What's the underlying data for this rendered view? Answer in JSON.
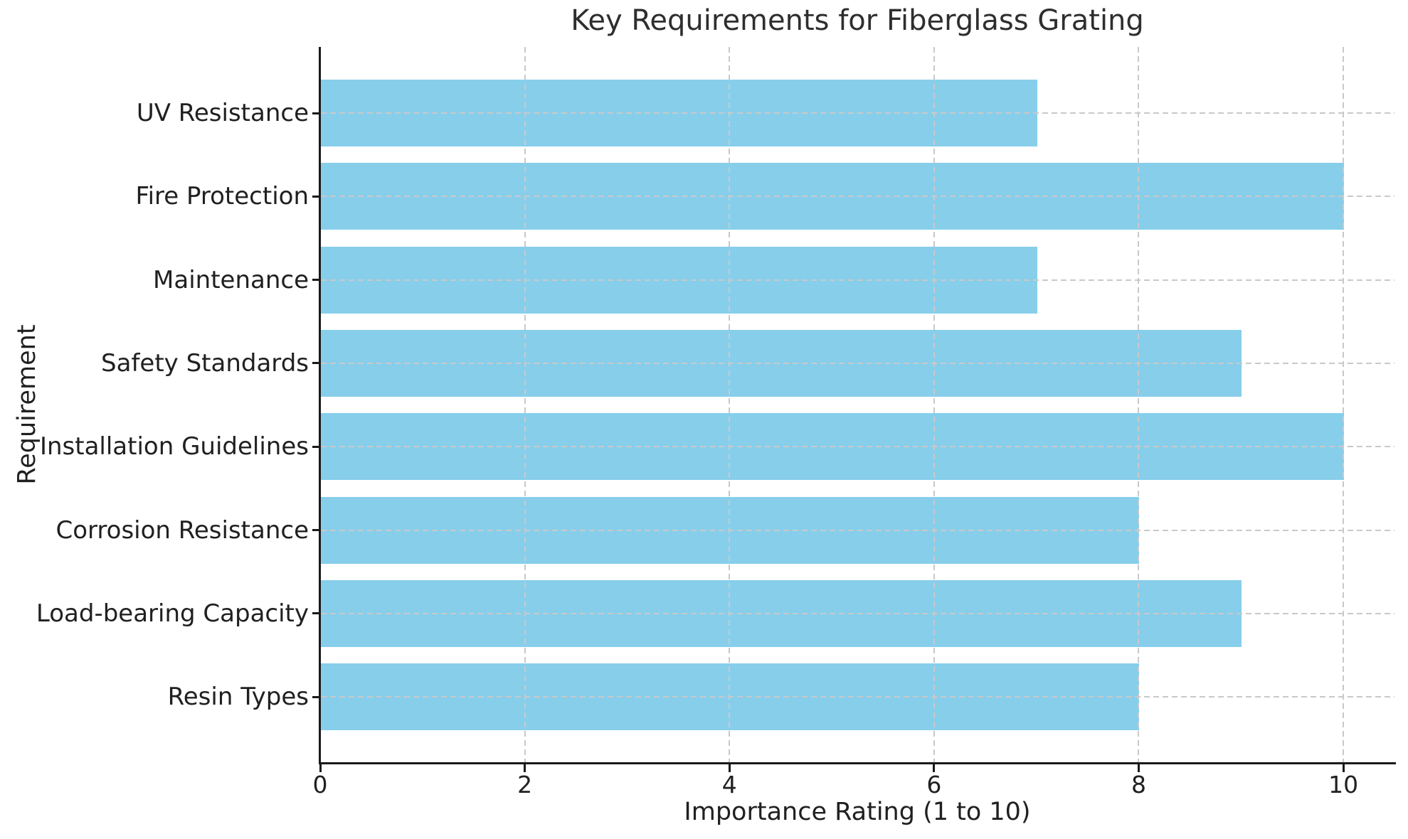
{
  "figure": {
    "background": "#ffffff"
  },
  "chart_data": {
    "type": "bar",
    "orientation": "horizontal",
    "title": "Key Requirements for Fiberglass Grating",
    "xlabel": "Importance Rating (1 to 10)",
    "ylabel": "Requirement",
    "categories": [
      "UV Resistance",
      "Fire Protection",
      "Maintenance",
      "Safety Standards",
      "Installation Guidelines",
      "Corrosion Resistance",
      "Load-bearing Capacity",
      "Resin Types"
    ],
    "values": [
      7,
      10,
      7,
      9,
      10,
      8,
      9,
      8
    ],
    "xticks": [
      0,
      2,
      4,
      6,
      8,
      10
    ],
    "xlim": [
      0,
      10.5
    ],
    "grid": true,
    "grid_style": "dashed",
    "legend": "none",
    "bar_color": "#87ceeb",
    "grid_color": "#c9c9c9",
    "axis_color": "#1a1a1a",
    "text_color": "#202020"
  }
}
